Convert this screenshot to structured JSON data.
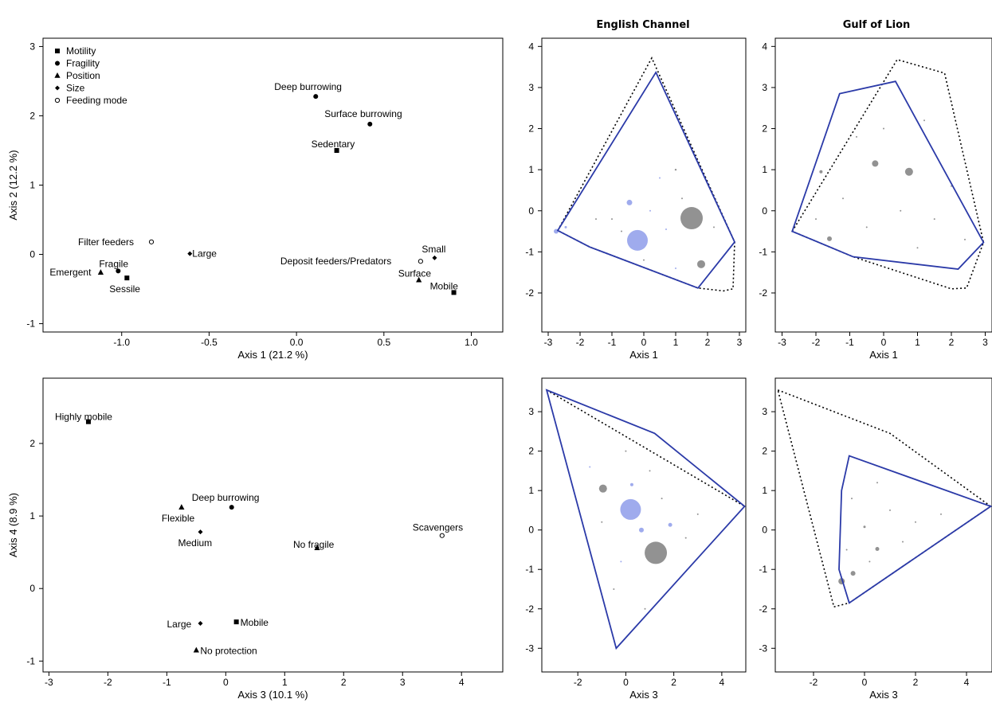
{
  "headers": {
    "english_channel": "English Channel",
    "gulf_of_lion": "Gulf of Lion"
  },
  "legend": [
    {
      "label": "Motility",
      "marker": "square"
    },
    {
      "label": "Fragility",
      "marker": "circle"
    },
    {
      "label": "Position",
      "marker": "triangle"
    },
    {
      "label": "Size",
      "marker": "diamond"
    },
    {
      "label": "Feeding mode",
      "marker": "open-circle"
    }
  ],
  "chart_data": [
    {
      "id": "trait-axis1-axis2",
      "type": "scatter",
      "xlabel": "Axis 1 (21.2 %)",
      "ylabel": "Axis 2 (12.2 %)",
      "xlim": [
        -1.45,
        1.18
      ],
      "ylim": [
        -1.12,
        3.12
      ],
      "xticks": [
        -1.0,
        -0.5,
        0.0,
        0.5,
        1.0
      ],
      "yticks": [
        -1,
        0,
        1,
        2,
        3
      ],
      "xtick_labels": [
        "-1.0",
        "-0.5",
        "0.0",
        "0.5",
        "1.0"
      ],
      "ytick_labels": [
        "-1",
        "0",
        "1",
        "2",
        "3"
      ],
      "legend_position": "top-left",
      "points": [
        {
          "label": "Deep burrowing",
          "x": 0.11,
          "y": 2.28,
          "marker": "circle"
        },
        {
          "label": "Surface burrowing",
          "x": 0.42,
          "y": 1.88,
          "marker": "circle"
        },
        {
          "label": "Sedentary",
          "x": 0.23,
          "y": 1.5,
          "marker": "square"
        },
        {
          "label": "Filter feeders",
          "x": -0.83,
          "y": 0.18,
          "marker": "open-circle"
        },
        {
          "label": "Large",
          "x": -0.61,
          "y": 0.01,
          "marker": "diamond"
        },
        {
          "label": "Fragile",
          "x": -1.02,
          "y": -0.24,
          "marker": "circle"
        },
        {
          "label": "Emergent",
          "x": -1.12,
          "y": -0.26,
          "marker": "triangle"
        },
        {
          "label": "Sessile",
          "x": -0.97,
          "y": -0.34,
          "marker": "square"
        },
        {
          "label": "Small",
          "x": 0.79,
          "y": -0.05,
          "marker": "diamond"
        },
        {
          "label": "Deposit feeders/Predators",
          "x": 0.71,
          "y": -0.1,
          "marker": "open-circle"
        },
        {
          "label": "Surface",
          "x": 0.7,
          "y": -0.37,
          "marker": "triangle"
        },
        {
          "label": "Mobile",
          "x": 0.9,
          "y": -0.55,
          "marker": "square"
        }
      ]
    },
    {
      "id": "trait-axis3-axis4",
      "type": "scatter",
      "xlabel": "Axis 3 (10.1 %)",
      "ylabel": "Axis 4 (8.9 %)",
      "xlim": [
        -3.1,
        4.7
      ],
      "ylim": [
        -1.15,
        2.9
      ],
      "xticks": [
        -3,
        -2,
        -1,
        0,
        1,
        2,
        3,
        4
      ],
      "yticks": [
        -1,
        0,
        1,
        2
      ],
      "xtick_labels": [
        "-3",
        "-2",
        "-1",
        "0",
        "1",
        "2",
        "3",
        "4"
      ],
      "ytick_labels": [
        "-1",
        "0",
        "1",
        "2"
      ],
      "points": [
        {
          "label": "Highly mobile",
          "x": -2.33,
          "y": 2.3,
          "marker": "square"
        },
        {
          "label": "Deep burrowing",
          "x": 0.1,
          "y": 1.12,
          "marker": "circle"
        },
        {
          "label": "Flexible",
          "x": -0.75,
          "y": 1.12,
          "marker": "triangle"
        },
        {
          "label": "Medium",
          "x": -0.43,
          "y": 0.78,
          "marker": "diamond"
        },
        {
          "label": "No fragile",
          "x": 1.55,
          "y": 0.56,
          "marker": "triangle"
        },
        {
          "label": "Scavengers",
          "x": 3.67,
          "y": 0.73,
          "marker": "open-circle"
        },
        {
          "label": "Large",
          "x": -0.43,
          "y": -0.48,
          "marker": "diamond"
        },
        {
          "label": "Mobile",
          "x": 0.18,
          "y": -0.46,
          "marker": "square"
        },
        {
          "label": "No protection",
          "x": -0.5,
          "y": -0.85,
          "marker": "triangle"
        }
      ]
    },
    {
      "id": "english-channel-axis1",
      "type": "scatter",
      "xlabel": "Axis 1",
      "ylabel": "",
      "xlim": [
        -3.2,
        3.2
      ],
      "ylim": [
        -2.95,
        4.2
      ],
      "xticks": [
        -3,
        -2,
        -1,
        0,
        1,
        2,
        3
      ],
      "yticks": [
        -2,
        -1,
        0,
        1,
        2,
        3,
        4
      ],
      "xtick_labels": [
        "-3",
        "-2",
        "-1",
        "0",
        "1",
        "2",
        "3"
      ],
      "ytick_labels": [
        "-2",
        "-1",
        "0",
        "1",
        "2",
        "3",
        "4"
      ],
      "hull_solid": [
        [
          -2.7,
          -0.48
        ],
        [
          0.38,
          3.37
        ],
        [
          2.85,
          -0.76
        ],
        [
          1.7,
          -1.88
        ],
        [
          -1.7,
          -0.88
        ]
      ],
      "hull_dotted": [
        [
          -2.7,
          -0.48
        ],
        [
          0.25,
          3.72
        ],
        [
          2.85,
          -0.76
        ],
        [
          2.8,
          -1.9
        ],
        [
          2.5,
          -1.95
        ],
        [
          1.7,
          -1.88
        ],
        [
          -1.7,
          -0.88
        ]
      ],
      "bubbles": [
        {
          "x": 1.5,
          "y": -0.18,
          "r": 14,
          "color": "gray"
        },
        {
          "x": -0.2,
          "y": -0.72,
          "r": 13,
          "color": "blue"
        },
        {
          "x": 1.8,
          "y": -1.3,
          "r": 5,
          "color": "gray"
        },
        {
          "x": -0.45,
          "y": 0.2,
          "r": 3.5,
          "color": "blue"
        },
        {
          "x": -2.75,
          "y": -0.5,
          "r": 3,
          "color": "blue"
        },
        {
          "x": -2.45,
          "y": -0.4,
          "r": 1.5,
          "color": "blue"
        },
        {
          "x": 1.0,
          "y": 1.0,
          "r": 1.2,
          "color": "gray"
        },
        {
          "x": 0.2,
          "y": 0.0,
          "r": 1,
          "color": "blue"
        },
        {
          "x": -1.0,
          "y": -0.2,
          "r": 1,
          "color": "gray"
        },
        {
          "x": 0.7,
          "y": -0.45,
          "r": 1,
          "color": "blue"
        },
        {
          "x": 1.2,
          "y": 0.3,
          "r": 1,
          "color": "gray"
        },
        {
          "x": -0.7,
          "y": -0.5,
          "r": 1,
          "color": "gray"
        },
        {
          "x": 2.2,
          "y": -0.4,
          "r": 1,
          "color": "gray"
        },
        {
          "x": 0.5,
          "y": 0.8,
          "r": 1,
          "color": "blue"
        },
        {
          "x": -1.5,
          "y": -0.2,
          "r": 1,
          "color": "gray"
        },
        {
          "x": 0.0,
          "y": -1.2,
          "r": 1,
          "color": "gray"
        },
        {
          "x": 1.0,
          "y": -1.4,
          "r": 1,
          "color": "blue"
        }
      ]
    },
    {
      "id": "gulf-of-lion-axis1",
      "type": "scatter",
      "xlabel": "Axis 1",
      "ylabel": "",
      "xlim": [
        -3.2,
        3.2
      ],
      "ylim": [
        -2.95,
        4.2
      ],
      "xticks": [
        -3,
        -2,
        -1,
        0,
        1,
        2,
        3
      ],
      "yticks": [
        -2,
        -1,
        0,
        1,
        2,
        3,
        4
      ],
      "xtick_labels": [
        "-3",
        "-2",
        "-1",
        "0",
        "1",
        "2",
        "3"
      ],
      "ytick_labels": [
        "-2",
        "-1",
        "0",
        "1",
        "2",
        "3",
        "4"
      ],
      "hull_solid": [
        [
          -2.7,
          -0.5
        ],
        [
          -1.3,
          2.85
        ],
        [
          0.35,
          3.15
        ],
        [
          2.95,
          -0.77
        ],
        [
          2.2,
          -1.42
        ],
        [
          -0.9,
          -1.12
        ]
      ],
      "hull_dotted": [
        [
          -2.7,
          -0.5
        ],
        [
          0.4,
          3.68
        ],
        [
          1.8,
          3.35
        ],
        [
          2.95,
          -0.77
        ],
        [
          2.45,
          -1.88
        ],
        [
          2.0,
          -1.9
        ],
        [
          -0.9,
          -1.12
        ]
      ],
      "bubbles": [
        {
          "x": 0.75,
          "y": 0.95,
          "r": 5,
          "color": "gray"
        },
        {
          "x": -0.25,
          "y": 1.15,
          "r": 4,
          "color": "gray"
        },
        {
          "x": -1.6,
          "y": -0.68,
          "r": 3,
          "color": "gray"
        },
        {
          "x": -1.85,
          "y": 0.95,
          "r": 2,
          "color": "gray"
        },
        {
          "x": 0.5,
          "y": 0.0,
          "r": 1,
          "color": "gray"
        },
        {
          "x": 1.5,
          "y": -0.2,
          "r": 1,
          "color": "gray"
        },
        {
          "x": -0.5,
          "y": -0.4,
          "r": 1,
          "color": "gray"
        },
        {
          "x": 1.0,
          "y": -0.9,
          "r": 1,
          "color": "gray"
        },
        {
          "x": -1.2,
          "y": 0.3,
          "r": 1,
          "color": "gray"
        },
        {
          "x": 2.0,
          "y": 0.6,
          "r": 1,
          "color": "gray"
        },
        {
          "x": 0.0,
          "y": 2.0,
          "r": 1,
          "color": "gray"
        },
        {
          "x": -0.8,
          "y": 1.8,
          "r": 1,
          "color": "gray"
        },
        {
          "x": 1.2,
          "y": 2.2,
          "r": 1,
          "color": "gray"
        },
        {
          "x": 2.4,
          "y": -0.7,
          "r": 1,
          "color": "gray"
        },
        {
          "x": -2.0,
          "y": -0.2,
          "r": 1,
          "color": "gray"
        }
      ]
    },
    {
      "id": "english-channel-axis3",
      "type": "scatter",
      "xlabel": "Axis 3",
      "ylabel": "",
      "xlim": [
        -3.5,
        5.0
      ],
      "ylim": [
        -3.6,
        3.85
      ],
      "xticks": [
        -2,
        0,
        2,
        4
      ],
      "yticks": [
        -3,
        -2,
        -1,
        0,
        1,
        2,
        3
      ],
      "xtick_labels": [
        "-2",
        "0",
        "2",
        "4"
      ],
      "ytick_labels": [
        "-3",
        "-2",
        "-1",
        "0",
        "1",
        "2",
        "3"
      ],
      "hull_solid": [
        [
          -3.3,
          3.55
        ],
        [
          1.2,
          2.45
        ],
        [
          4.95,
          0.6
        ],
        [
          -0.4,
          -3.0
        ]
      ],
      "hull_dotted": [
        [
          -3.3,
          3.55
        ],
        [
          4.95,
          0.6
        ]
      ],
      "bubbles": [
        {
          "x": 1.25,
          "y": -0.58,
          "r": 14,
          "color": "gray"
        },
        {
          "x": 0.2,
          "y": 0.52,
          "r": 13,
          "color": "blue"
        },
        {
          "x": -0.95,
          "y": 1.05,
          "r": 5,
          "color": "gray"
        },
        {
          "x": 0.65,
          "y": 0.0,
          "r": 3,
          "color": "blue"
        },
        {
          "x": 1.85,
          "y": 0.13,
          "r": 2.5,
          "color": "blue"
        },
        {
          "x": 0.25,
          "y": 1.15,
          "r": 2,
          "color": "blue"
        },
        {
          "x": -1.0,
          "y": 0.2,
          "r": 1,
          "color": "gray"
        },
        {
          "x": 1.0,
          "y": 1.5,
          "r": 1,
          "color": "gray"
        },
        {
          "x": -0.5,
          "y": -1.5,
          "r": 1,
          "color": "gray"
        },
        {
          "x": 2.5,
          "y": -0.2,
          "r": 1,
          "color": "gray"
        },
        {
          "x": 0.0,
          "y": 2.0,
          "r": 1,
          "color": "gray"
        },
        {
          "x": -1.5,
          "y": 1.6,
          "r": 1,
          "color": "blue"
        },
        {
          "x": 1.5,
          "y": 0.8,
          "r": 1,
          "color": "gray"
        },
        {
          "x": -0.2,
          "y": -0.8,
          "r": 1,
          "color": "blue"
        },
        {
          "x": 3.0,
          "y": 0.4,
          "r": 1,
          "color": "gray"
        },
        {
          "x": 0.8,
          "y": -2.0,
          "r": 1,
          "color": "gray"
        }
      ]
    },
    {
      "id": "gulf-of-lion-axis3",
      "type": "scatter",
      "xlabel": "Axis 3",
      "ylabel": "",
      "xlim": [
        -3.5,
        5.0
      ],
      "ylim": [
        -3.6,
        3.85
      ],
      "xticks": [
        -2,
        0,
        2,
        4
      ],
      "yticks": [
        -3,
        -2,
        -1,
        0,
        1,
        2,
        3
      ],
      "xtick_labels": [
        "-2",
        "0",
        "2",
        "4"
      ],
      "ytick_labels": [
        "-3",
        "-2",
        "-1",
        "0",
        "1",
        "2",
        "3"
      ],
      "hull_solid": [
        [
          -0.9,
          1.0
        ],
        [
          -0.6,
          1.88
        ],
        [
          4.95,
          0.6
        ],
        [
          -0.6,
          -1.85
        ],
        [
          -1.0,
          -1.0
        ]
      ],
      "hull_dotted": [
        [
          -3.4,
          3.55
        ],
        [
          1.0,
          2.45
        ],
        [
          4.95,
          0.6
        ],
        [
          -0.6,
          -1.85
        ],
        [
          -1.2,
          -1.95
        ]
      ],
      "bubbles": [
        {
          "x": -0.9,
          "y": -1.3,
          "r": 4,
          "color": "gray"
        },
        {
          "x": -0.45,
          "y": -1.1,
          "r": 3,
          "color": "gray"
        },
        {
          "x": 0.5,
          "y": -0.48,
          "r": 2.5,
          "color": "gray"
        },
        {
          "x": 0.0,
          "y": 0.08,
          "r": 1.5,
          "color": "gray"
        },
        {
          "x": 1.0,
          "y": 0.5,
          "r": 1,
          "color": "gray"
        },
        {
          "x": -0.5,
          "y": 0.8,
          "r": 1,
          "color": "gray"
        },
        {
          "x": 2.0,
          "y": 0.2,
          "r": 1,
          "color": "gray"
        },
        {
          "x": 0.5,
          "y": 1.2,
          "r": 1,
          "color": "gray"
        },
        {
          "x": -0.7,
          "y": -0.5,
          "r": 1,
          "color": "gray"
        },
        {
          "x": 1.5,
          "y": -0.3,
          "r": 1,
          "color": "gray"
        },
        {
          "x": 3.0,
          "y": 0.4,
          "r": 1,
          "color": "gray"
        },
        {
          "x": 0.2,
          "y": -0.8,
          "r": 1,
          "color": "gray"
        }
      ]
    }
  ],
  "colors": {
    "hull_solid": "#2b3aa8",
    "hull_dotted": "#000000",
    "bubble_gray": "#8c8c8c",
    "bubble_blue": "#9aa6ec",
    "frame": "#000000"
  }
}
